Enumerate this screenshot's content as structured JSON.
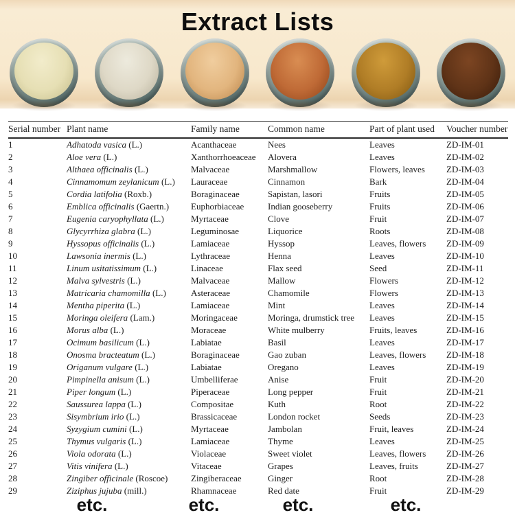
{
  "title": "Extract Lists",
  "banner": {
    "background_color": "#f8e8cc",
    "bowls": [
      {
        "name": "pale-cream-powder",
        "highlight": "#f2eccb",
        "color": "#e6dfb4",
        "shade": "#c9c190"
      },
      {
        "name": "off-white-powder",
        "highlight": "#edeadd",
        "color": "#ded8c6",
        "shade": "#bdb6a2"
      },
      {
        "name": "tan-powder",
        "highlight": "#f0cd9e",
        "color": "#e2b57e",
        "shade": "#c08c52"
      },
      {
        "name": "rust-orange-powder",
        "highlight": "#d98d52",
        "color": "#bf6a36",
        "shade": "#96491d"
      },
      {
        "name": "golden-ochre-powder",
        "highlight": "#cf9b3a",
        "color": "#b07d26",
        "shade": "#865c14"
      },
      {
        "name": "dark-brown-powder",
        "highlight": "#7c4522",
        "color": "#5f3317",
        "shade": "#3f1f0c"
      }
    ]
  },
  "table": {
    "columns": [
      "Serial number",
      "Plant name",
      "Family name",
      "Common name",
      "Part of plant used",
      "Voucher number"
    ],
    "rows": [
      {
        "serial": "1",
        "plant": "Adhatoda vasica",
        "authority": "(L.)",
        "family": "Acanthaceae",
        "common": "Nees",
        "part": "Leaves",
        "voucher": "ZD-IM-01"
      },
      {
        "serial": "2",
        "plant": "Aloe vera",
        "authority": "(L.)",
        "family": "Xanthorrhoeaceae",
        "common": "Alovera",
        "part": "Leaves",
        "voucher": "ZD-IM-02"
      },
      {
        "serial": "3",
        "plant": "Althaea officinalis",
        "authority": "(L.)",
        "family": "Malvaceae",
        "common": "Marshmallow",
        "part": "Flowers, leaves",
        "voucher": "ZD-IM-03"
      },
      {
        "serial": "4",
        "plant": "Cinnamomum zeylanicum",
        "authority": "(L.)",
        "family": "Lauraceae",
        "common": "Cinnamon",
        "part": "Bark",
        "voucher": "ZD-IM-04"
      },
      {
        "serial": "5",
        "plant": "Cordia latifolia",
        "authority": "(Roxb.)",
        "family": "Boraginaceae",
        "common": "Sapistan, lasori",
        "part": "Fruits",
        "voucher": "ZD-IM-05"
      },
      {
        "serial": "6",
        "plant": "Emblica officinalis",
        "authority": "(Gaertn.)",
        "family": "Euphorbiaceae",
        "common": "Indian gooseberry",
        "part": "Fruits",
        "voucher": "ZD-IM-06"
      },
      {
        "serial": "7",
        "plant": "Eugenia caryophyllata",
        "authority": "(L.)",
        "family": "Myrtaceae",
        "common": "Clove",
        "part": "Fruit",
        "voucher": "ZD-IM-07"
      },
      {
        "serial": "8",
        "plant": "Glycyrrhiza glabra",
        "authority": "(L.)",
        "family": "Leguminosae",
        "common": "Liquorice",
        "part": "Roots",
        "voucher": "ZD-IM-08"
      },
      {
        "serial": "9",
        "plant": "Hyssopus officinalis",
        "authority": "(L.)",
        "family": "Lamiaceae",
        "common": "Hyssop",
        "part": "Leaves, flowers",
        "voucher": "ZD-IM-09"
      },
      {
        "serial": "10",
        "plant": "Lawsonia inermis",
        "authority": "(L.)",
        "family": "Lythraceae",
        "common": "Henna",
        "part": "Leaves",
        "voucher": "ZD-IM-10"
      },
      {
        "serial": "11",
        "plant": "Linum usitatissimum",
        "authority": "(L.)",
        "family": "Linaceae",
        "common": "Flax seed",
        "part": "Seed",
        "voucher": "ZD-IM-11"
      },
      {
        "serial": "12",
        "plant": "Malva sylvestris",
        "authority": "(L.)",
        "family": "Malvaceae",
        "common": "Mallow",
        "part": "Flowers",
        "voucher": "ZD-IM-12"
      },
      {
        "serial": "13",
        "plant": "Matricaria chamomilla",
        "authority": "(L.)",
        "family": "Asteraceae",
        "common": "Chamomile",
        "part": "Flowers",
        "voucher": "ZD-IM-13"
      },
      {
        "serial": "14",
        "plant": "Mentha piperita",
        "authority": "(L.)",
        "family": "Lamiaceae",
        "common": "Mint",
        "part": "Leaves",
        "voucher": "ZD-IM-14"
      },
      {
        "serial": "15",
        "plant": "Moringa oleifera",
        "authority": "(Lam.)",
        "family": "Moringaceae",
        "common": "Moringa, drumstick tree",
        "part": "Leaves",
        "voucher": "ZD-IM-15"
      },
      {
        "serial": "16",
        "plant": "Morus alba",
        "authority": "(L.)",
        "family": "Moraceae",
        "common": "White mulberry",
        "part": "Fruits, leaves",
        "voucher": "ZD-IM-16"
      },
      {
        "serial": "17",
        "plant": "Ocimum basilicum",
        "authority": "(L.)",
        "family": "Labiatae",
        "common": "Basil",
        "part": "Leaves",
        "voucher": "ZD-IM-17"
      },
      {
        "serial": "18",
        "plant": "Onosma bracteatum",
        "authority": "(L.)",
        "family": "Boraginaceae",
        "common": "Gao zuban",
        "part": "Leaves, flowers",
        "voucher": "ZD-IM-18"
      },
      {
        "serial": "19",
        "plant": "Origanum vulgare",
        "authority": "(L.)",
        "family": "Labiatae",
        "common": "Oregano",
        "part": "Leaves",
        "voucher": "ZD-IM-19"
      },
      {
        "serial": "20",
        "plant": "Pimpinella anisum",
        "authority": "(L.)",
        "family": "Umbelliferae",
        "common": "Anise",
        "part": "Fruit",
        "voucher": "ZD-IM-20"
      },
      {
        "serial": "21",
        "plant": "Piper longum",
        "authority": "(L.)",
        "family": "Piperaceae",
        "common": "Long pepper",
        "part": "Fruit",
        "voucher": "ZD-IM-21"
      },
      {
        "serial": "22",
        "plant": "Saussurea lappa",
        "authority": "(L.)",
        "family": "Compositae",
        "common": "Kuth",
        "part": "Root",
        "voucher": "ZD-IM-22"
      },
      {
        "serial": "23",
        "plant": "Sisymbrium irio",
        "authority": "(L.)",
        "family": "Brassicaceae",
        "common": "London rocket",
        "part": "Seeds",
        "voucher": "ZD-IM-23"
      },
      {
        "serial": "24",
        "plant": "Syzygium cumini",
        "authority": "(L.)",
        "family": "Myrtaceae",
        "common": "Jambolan",
        "part": "Fruit, leaves",
        "voucher": "ZD-IM-24"
      },
      {
        "serial": "25",
        "plant": "Thymus vulgaris",
        "authority": "(L.)",
        "family": "Lamiaceae",
        "common": "Thyme",
        "part": "Leaves",
        "voucher": "ZD-IM-25"
      },
      {
        "serial": "26",
        "plant": "Viola odorata",
        "authority": "(L.)",
        "family": "Violaceae",
        "common": "Sweet violet",
        "part": "Leaves, flowers",
        "voucher": "ZD-IM-26"
      },
      {
        "serial": "27",
        "plant": "Vitis vinifera",
        "authority": "(L.)",
        "family": "Vitaceae",
        "common": "Grapes",
        "part": "Leaves, fruits",
        "voucher": "ZD-IM-27"
      },
      {
        "serial": "28",
        "plant": "Zingiber officinale",
        "authority": "(Roscoe)",
        "family": "Zingiberaceae",
        "common": "Ginger",
        "part": "Root",
        "voucher": "ZD-IM-28"
      },
      {
        "serial": "29",
        "plant": "Ziziphus jujuba",
        "authority": "(mill.)",
        "family": "Rhamnaceae",
        "common": "Red date",
        "part": "Fruit",
        "voucher": "ZD-IM-29"
      }
    ]
  },
  "etc_labels": [
    "etc.",
    "etc.",
    "etc.",
    "etc."
  ]
}
